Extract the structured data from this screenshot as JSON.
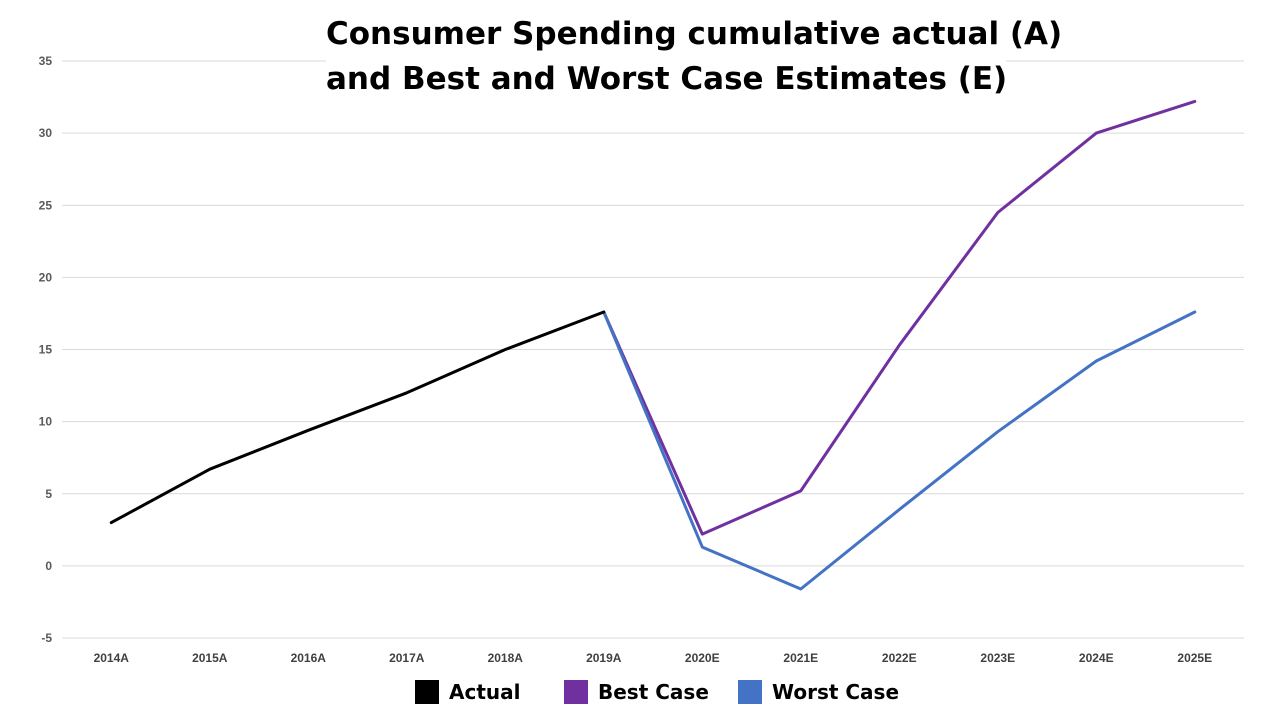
{
  "chart_data": {
    "type": "line",
    "title_lines": [
      "Consumer Spending cumulative actual (A)",
      "and Best and Worst Case Estimates (E)"
    ],
    "categories": [
      "2014A",
      "2015A",
      "2016A",
      "2017A",
      "2018A",
      "2019A",
      "2020E",
      "2021E",
      "2022E",
      "2023E",
      "2024E",
      "2025E"
    ],
    "ylim": [
      -5,
      35
    ],
    "yticks": [
      -5,
      0,
      5,
      10,
      15,
      20,
      25,
      30,
      35
    ],
    "grid": true,
    "legend_position": "bottom",
    "series": [
      {
        "name": "Actual",
        "color": "#000000",
        "values": [
          3.0,
          6.7,
          9.4,
          12.0,
          15.0,
          17.6,
          null,
          null,
          null,
          null,
          null,
          null
        ]
      },
      {
        "name": "Best Case",
        "color": "#7030A0",
        "values": [
          null,
          null,
          null,
          null,
          null,
          17.6,
          2.2,
          5.2,
          15.3,
          24.5,
          30.0,
          32.2
        ]
      },
      {
        "name": "Worst Case",
        "color": "#4472C4",
        "values": [
          null,
          null,
          null,
          null,
          null,
          17.6,
          1.3,
          -1.6,
          3.9,
          9.3,
          14.2,
          17.6
        ]
      }
    ]
  }
}
